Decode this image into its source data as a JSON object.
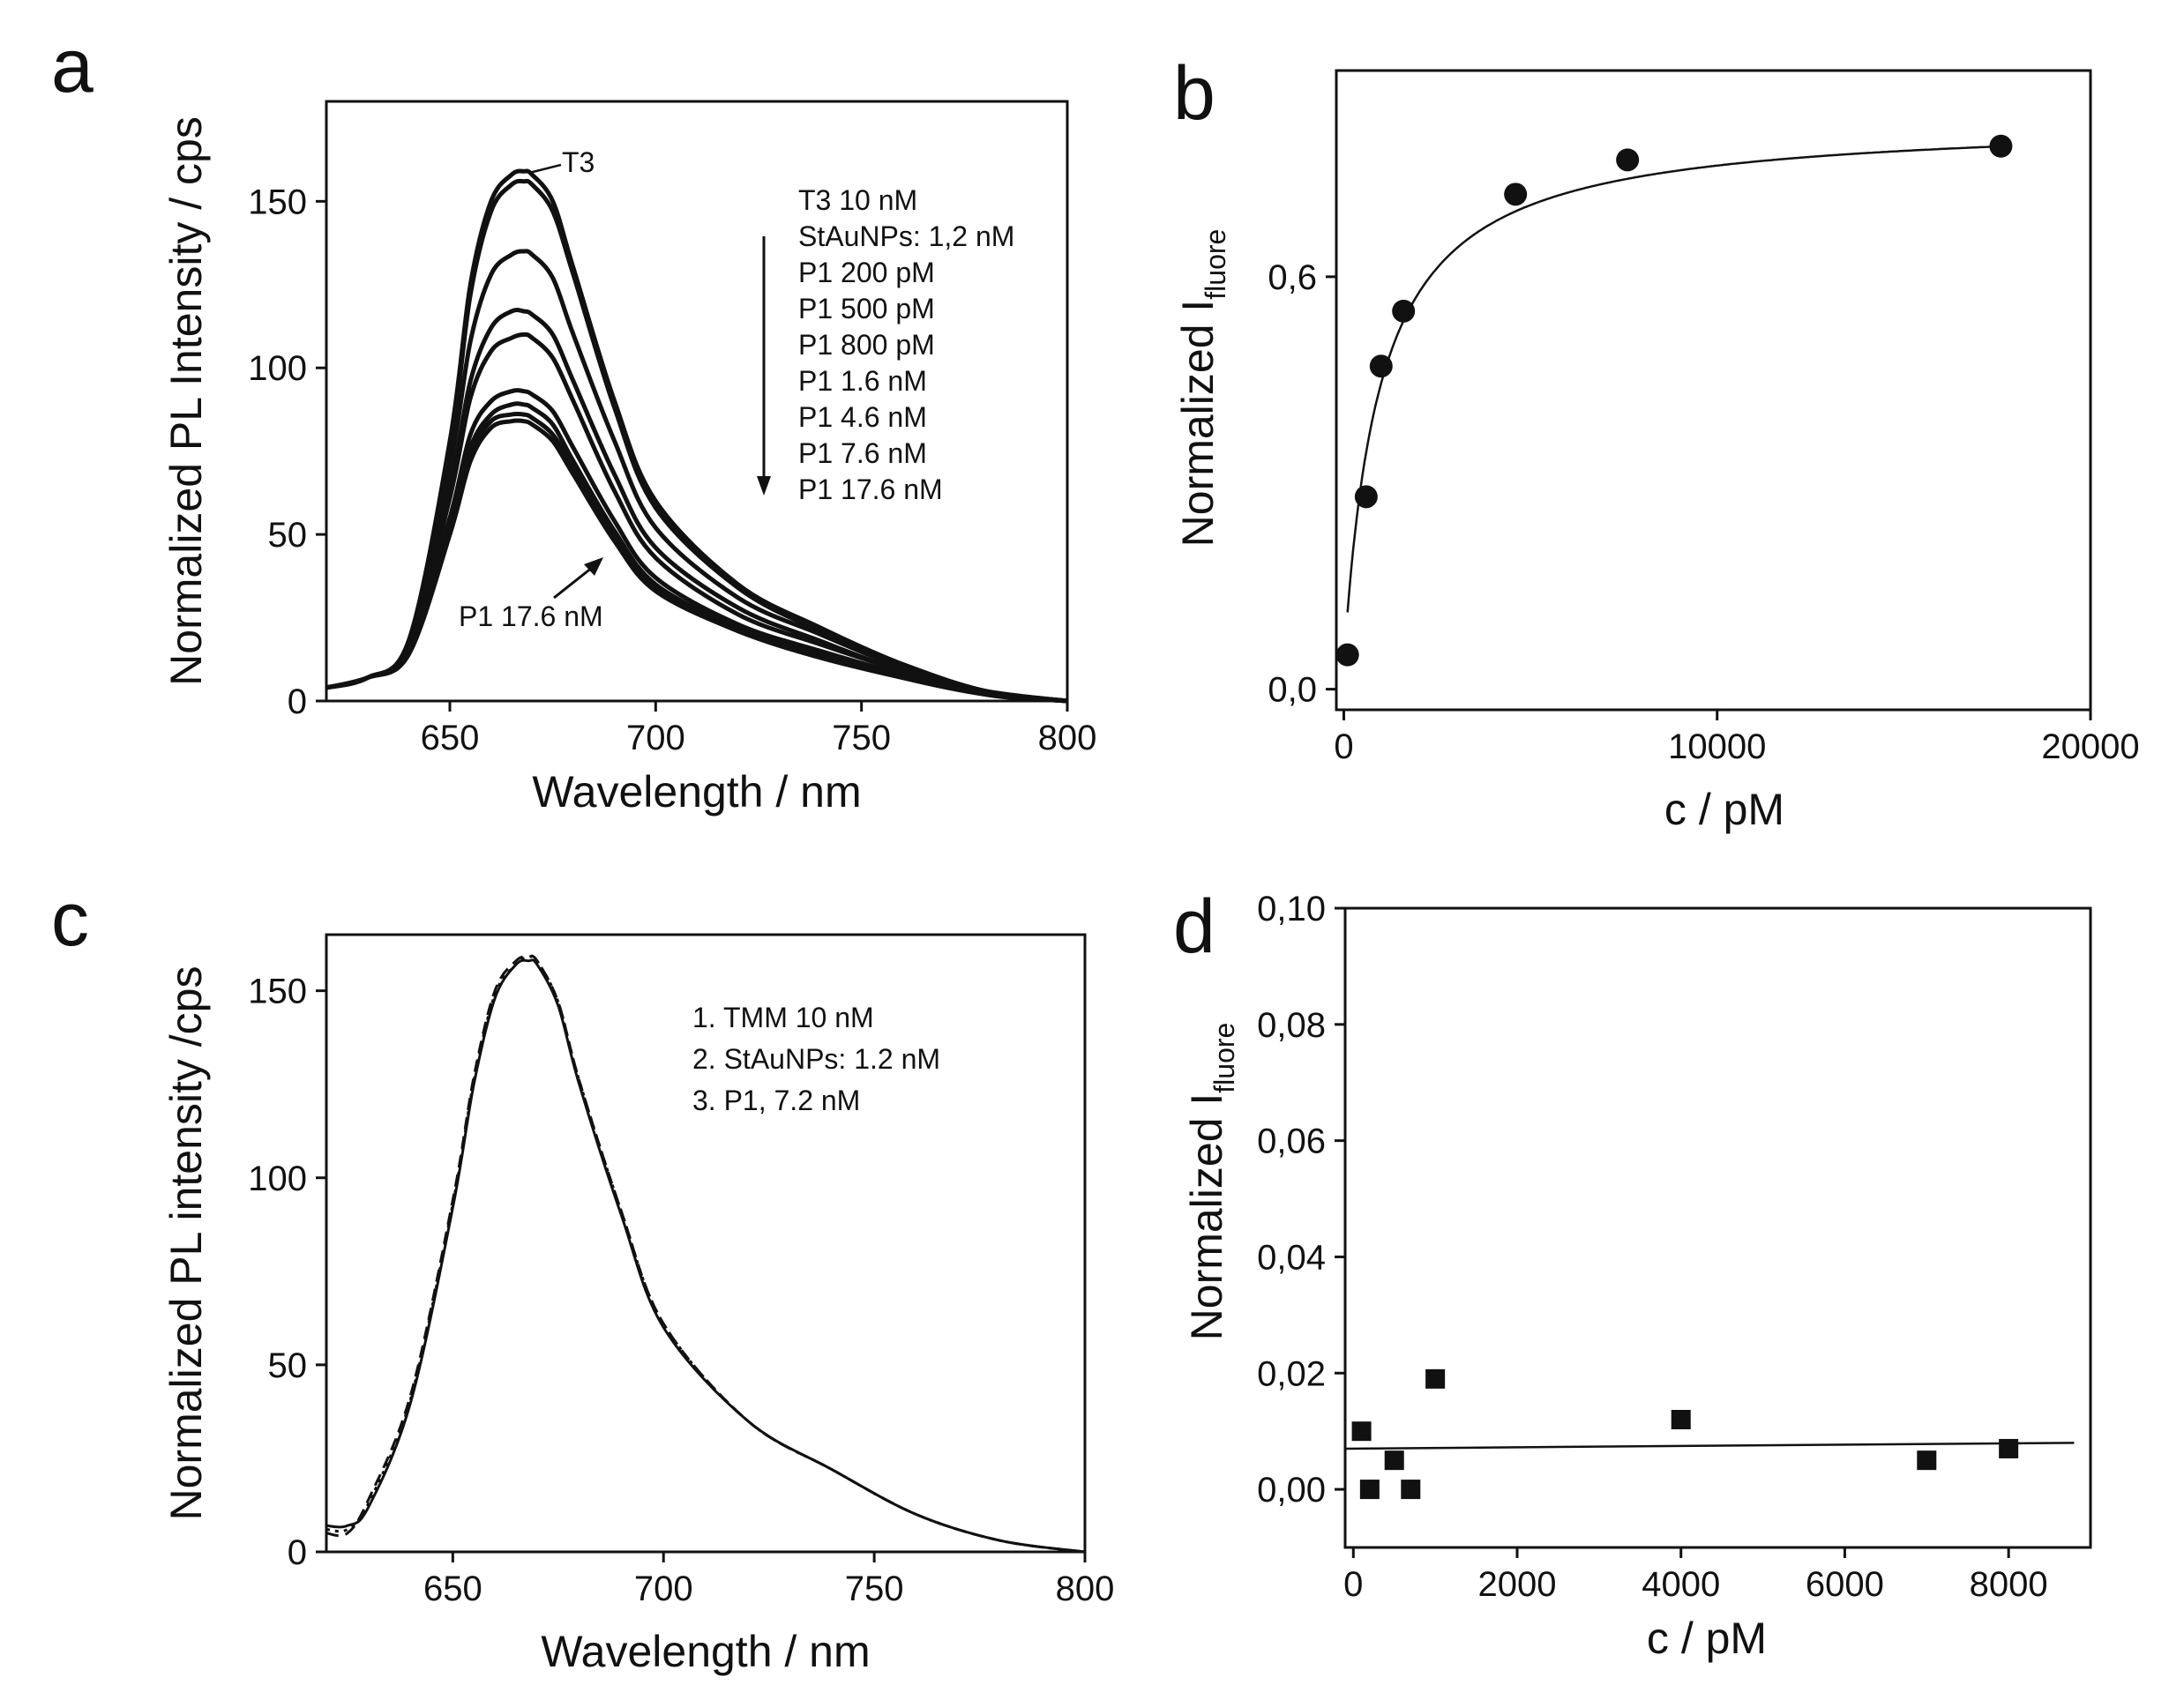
{
  "chart_data": [
    {
      "panel": "a",
      "type": "line",
      "xlabel": "Wavelength / nm",
      "ylabel": "Normalized PL Intensity / cps",
      "xlim": [
        620,
        800
      ],
      "ylim": [
        0,
        180
      ],
      "xticks": [
        650,
        700,
        750,
        800
      ],
      "yticks": [
        0,
        50,
        100,
        150
      ],
      "legend": [
        "T3  10 nM",
        "StAuNPs: 1,2 nM",
        "P1 200 pM",
        "P1 500 pM",
        "P1 800 pM",
        "P1 1.6 nM",
        "P1 4.6 nM",
        "P1 7.6 nM",
        "P1 17.6 nM"
      ],
      "annotations": [
        "T3",
        "P1 17.6 nM"
      ],
      "x": [
        620,
        630,
        640,
        650,
        655,
        660,
        665,
        668,
        670,
        675,
        680,
        690,
        700,
        720,
        740,
        760,
        780,
        800
      ],
      "series": [
        {
          "name": "T3  10 nM",
          "values": [
            4,
            7,
            18,
            78,
            125,
            150,
            158,
            159,
            158,
            150,
            130,
            90,
            60,
            35,
            22,
            11,
            3,
            0
          ]
        },
        {
          "name": "StAuNPs: 1,2 nM",
          "values": [
            4,
            7,
            18,
            76,
            122,
            147,
            155,
            156,
            155,
            147,
            128,
            88,
            58,
            34,
            21,
            11,
            3,
            0
          ]
        },
        {
          "name": "P1 200 pM",
          "values": [
            4,
            7,
            17,
            70,
            108,
            128,
            134,
            135,
            134,
            127,
            110,
            78,
            52,
            31,
            20,
            10,
            3,
            0
          ]
        },
        {
          "name": "P1 500 pM",
          "values": [
            4,
            7,
            16,
            64,
            96,
            112,
            117,
            117,
            116,
            110,
            96,
            68,
            46,
            28,
            18,
            9,
            3,
            0
          ]
        },
        {
          "name": "P1 800 pM",
          "values": [
            4,
            7,
            16,
            61,
            91,
            105,
            109,
            110,
            109,
            103,
            90,
            63,
            43,
            26,
            17,
            9,
            2,
            0
          ]
        },
        {
          "name": "P1 1.6 nM",
          "values": [
            4,
            7,
            15,
            55,
            80,
            90,
            93,
            93,
            92,
            87,
            76,
            54,
            37,
            23,
            15,
            8,
            2,
            0
          ]
        },
        {
          "name": "P1 4.6 nM",
          "values": [
            4,
            7,
            15,
            52,
            76,
            86,
            89,
            89,
            88,
            83,
            72,
            51,
            35,
            22,
            14,
            8,
            2,
            0
          ]
        },
        {
          "name": "P1 7.6 nM",
          "values": [
            4,
            7,
            14,
            51,
            74,
            84,
            86,
            86,
            85,
            80,
            70,
            49,
            34,
            21,
            14,
            7,
            2,
            0
          ]
        },
        {
          "name": "P1 17.6 nM",
          "values": [
            4,
            7,
            14,
            50,
            72,
            82,
            84,
            84,
            83,
            78,
            68,
            48,
            33,
            21,
            13,
            7,
            2,
            0
          ]
        }
      ]
    },
    {
      "panel": "b",
      "type": "scatter",
      "xlabel": "c / pM",
      "ylabel_main": "Normalized I",
      "ylabel_sub": "fluore",
      "xlim": [
        -200,
        20000
      ],
      "ylim": [
        -0.03,
        0.9
      ],
      "xticks": [
        0,
        10000,
        20000
      ],
      "yticks": [
        0.0,
        0.6
      ],
      "ytick_labels": [
        "0,0",
        "0,6"
      ],
      "points_x": [
        100,
        600,
        1000,
        1600,
        4600,
        7600,
        17600
      ],
      "points_y": [
        0.05,
        0.28,
        0.47,
        0.55,
        0.72,
        0.77,
        0.79
      ],
      "fit": "saturation curve"
    },
    {
      "panel": "c",
      "type": "line",
      "xlabel": "Wavelength / nm",
      "ylabel": "Normalized PL intensity /cps",
      "xlim": [
        620,
        800
      ],
      "ylim": [
        0,
        165
      ],
      "xticks": [
        650,
        700,
        750,
        800
      ],
      "yticks": [
        0,
        50,
        100,
        150
      ],
      "legend": [
        "1. TMM  10 nM",
        "2. StAuNPs: 1.2 nM",
        "3. P1, 7.2 nM"
      ],
      "x": [
        620,
        625,
        630,
        640,
        650,
        655,
        660,
        665,
        668,
        670,
        675,
        680,
        690,
        700,
        720,
        740,
        760,
        780,
        800
      ],
      "series": [
        {
          "name": "1. TMM  10 nM",
          "style": "solid",
          "values": [
            7,
            7,
            12,
            40,
            92,
            125,
            148,
            157,
            158,
            157,
            146,
            125,
            90,
            60,
            35,
            22,
            10,
            3,
            0
          ]
        },
        {
          "name": "2. StAuNPs: 1.2 nM",
          "style": "dashed",
          "values": [
            5,
            5,
            14,
            42,
            94,
            127,
            150,
            158,
            159,
            158,
            147,
            126,
            91,
            61,
            35,
            22,
            10,
            3,
            0
          ]
        },
        {
          "name": "3. P1, 7.2 nM",
          "style": "dotted",
          "values": [
            6,
            6,
            13,
            41,
            93,
            126,
            149,
            157,
            159,
            158,
            147,
            126,
            91,
            61,
            35,
            22,
            10,
            3,
            0
          ]
        }
      ]
    },
    {
      "panel": "d",
      "type": "scatter",
      "xlabel": "c / pM",
      "ylabel_main": "Normalized I",
      "ylabel_sub": "fluore",
      "xlim": [
        -100,
        9000
      ],
      "ylim": [
        -0.01,
        0.1
      ],
      "xticks": [
        0,
        2000,
        4000,
        6000,
        8000
      ],
      "yticks": [
        0.0,
        0.02,
        0.04,
        0.06,
        0.08,
        0.1
      ],
      "ytick_labels": [
        "0,00",
        "0,02",
        "0,04",
        "0,06",
        "0,08",
        "0,10"
      ],
      "points_x": [
        100,
        200,
        500,
        700,
        1000,
        4000,
        7000,
        8000
      ],
      "points_y": [
        0.01,
        0.0,
        0.005,
        0.0,
        0.019,
        0.012,
        0.005,
        0.007
      ],
      "fit_line": {
        "x": [
          -100,
          8800
        ],
        "y": [
          0.007,
          0.008
        ]
      }
    }
  ]
}
